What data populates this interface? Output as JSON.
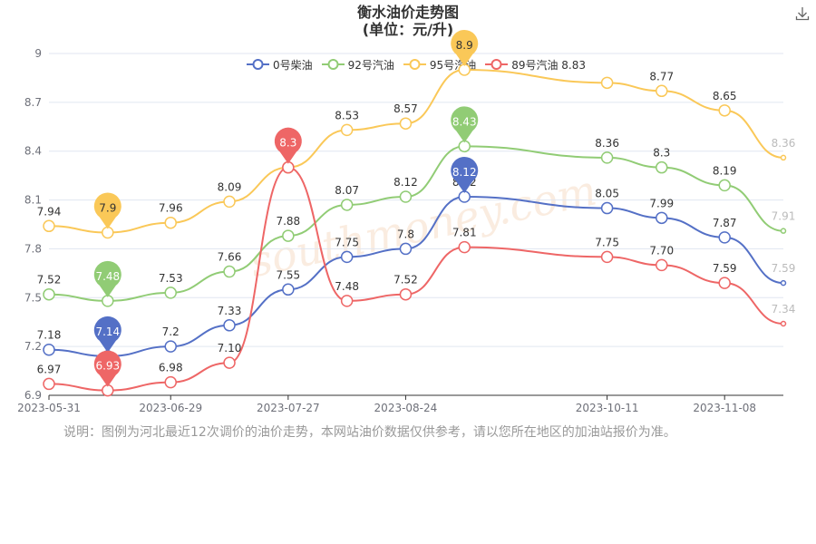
{
  "title_line1": "衡水油价走势图",
  "title_line2": "(单位：元/升)",
  "note": "说明：图例为河北最近12次调价的油价走势，本网站油价数据仅供参考，请以您所在地区的加油站报价为准。",
  "watermark": "southmoney.com",
  "colors": {
    "diesel0": "#5470c6",
    "gas92": "#91cc75",
    "gas95": "#fac858",
    "gas89": "#ee6666",
    "axis": "#333333",
    "grid": "#e0e6f1"
  },
  "icons": {
    "download": "download-icon"
  },
  "chart_data": {
    "type": "line",
    "dates": [
      "2023-05-31",
      "2023-06-14",
      "2023-06-29",
      "2023-07-13",
      "2023-07-27",
      "2023-08-10",
      "2023-08-24",
      "2023-09-07",
      "2023-10-11",
      "2023-10-24",
      "2023-11-08",
      "2023-11-22"
    ],
    "x_tick_labels": [
      "2023-05-31",
      "2023-06-29",
      "2023-07-27",
      "2023-08-24",
      "2023-10-11",
      "2023-11-08"
    ],
    "y_ticks": [
      "6.9",
      "7.2",
      "7.5",
      "7.8",
      "8.1",
      "8.4",
      "8.7",
      "9"
    ],
    "ylim": [
      6.9,
      9.0
    ],
    "legend_position": "top-center",
    "grid": "horizontal",
    "series": [
      {
        "name": "0号柴油",
        "color_key": "diesel0",
        "values": [
          7.18,
          7.14,
          7.2,
          7.33,
          7.55,
          7.75,
          7.8,
          8.12,
          8.05,
          7.99,
          7.87,
          7.59
        ],
        "labels": [
          "7.18",
          "",
          "7.2",
          "7.33",
          "7.55",
          "7.75",
          "7.8",
          "8.12",
          "8.05",
          "7.99",
          "7.87",
          "7.59"
        ],
        "markers": [
          {
            "index": 1,
            "text": "7.14"
          },
          {
            "index": 7,
            "text": "8.12"
          }
        ]
      },
      {
        "name": "92号汽油",
        "color_key": "gas92",
        "values": [
          7.52,
          7.48,
          7.53,
          7.66,
          7.88,
          8.07,
          8.12,
          8.43,
          8.36,
          8.3,
          8.19,
          7.91
        ],
        "labels": [
          "7.52",
          "",
          "7.53",
          "7.66",
          "7.88",
          "8.07",
          "8.12",
          "",
          "8.36",
          "8.3",
          "8.19",
          "7.91"
        ],
        "markers": [
          {
            "index": 1,
            "text": "7.48"
          },
          {
            "index": 7,
            "text": "8.43"
          }
        ]
      },
      {
        "name": "95号汽油",
        "color_key": "gas95",
        "values": [
          7.94,
          7.9,
          7.96,
          8.09,
          8.3,
          8.53,
          8.57,
          8.9,
          8.82,
          8.77,
          8.65,
          8.36
        ],
        "labels": [
          "7.94",
          "",
          "7.96",
          "8.09",
          "",
          "8.53",
          "8.57",
          "",
          "",
          "8.77",
          "8.65",
          "8.36"
        ],
        "markers": [
          {
            "index": 1,
            "text": "7.9"
          },
          {
            "index": 7,
            "text": "8.9"
          }
        ]
      },
      {
        "name": "89号汽油",
        "color_key": "gas89",
        "values": [
          6.97,
          6.93,
          6.98,
          7.1,
          8.3,
          7.48,
          7.52,
          7.81,
          7.75,
          7.7,
          7.59,
          7.34
        ],
        "labels": [
          "6.97",
          "",
          "6.98",
          "7.10",
          "",
          "7.48",
          "7.52",
          "7.81",
          "7.75",
          "7.70",
          "7.59",
          "7.34"
        ],
        "markers": [
          {
            "index": 1,
            "text": "6.93"
          },
          {
            "index": 4,
            "text": "8.3"
          }
        ]
      }
    ],
    "legend_extra_value": "8.83"
  }
}
